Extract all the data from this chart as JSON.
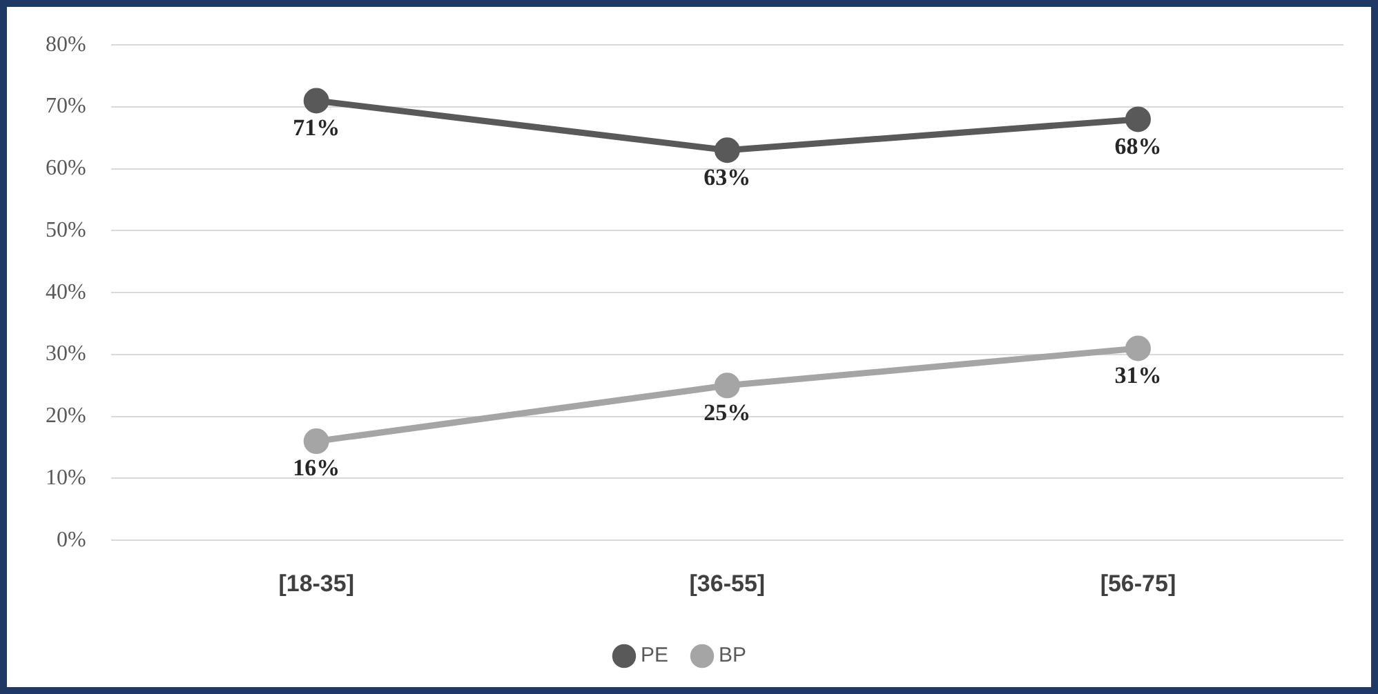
{
  "chart_data": {
    "type": "line",
    "categories": [
      "[18-35]",
      "[36-55]",
      "[56-75]"
    ],
    "series": [
      {
        "name": "PE",
        "color": "#595959",
        "values": [
          71,
          63,
          68
        ]
      },
      {
        "name": "BP",
        "color": "#a5a5a5",
        "values": [
          16,
          25,
          31
        ]
      }
    ],
    "ylim": [
      0,
      80
    ],
    "yticks": [
      {
        "value": 0,
        "label": "0%"
      },
      {
        "value": 10,
        "label": "10%"
      },
      {
        "value": 20,
        "label": "20%"
      },
      {
        "value": 30,
        "label": "30%"
      },
      {
        "value": 40,
        "label": "40%"
      },
      {
        "value": 50,
        "label": "50%"
      },
      {
        "value": 60,
        "label": "60%"
      },
      {
        "value": 70,
        "label": "70%"
      },
      {
        "value": 80,
        "label": "80%"
      }
    ],
    "value_labels": [
      [
        "71%",
        "63%",
        "68%"
      ],
      [
        "16%",
        "25%",
        "31%"
      ]
    ],
    "grid": "y",
    "legend": "bottom",
    "marker": "circle",
    "line_style": "solid"
  }
}
